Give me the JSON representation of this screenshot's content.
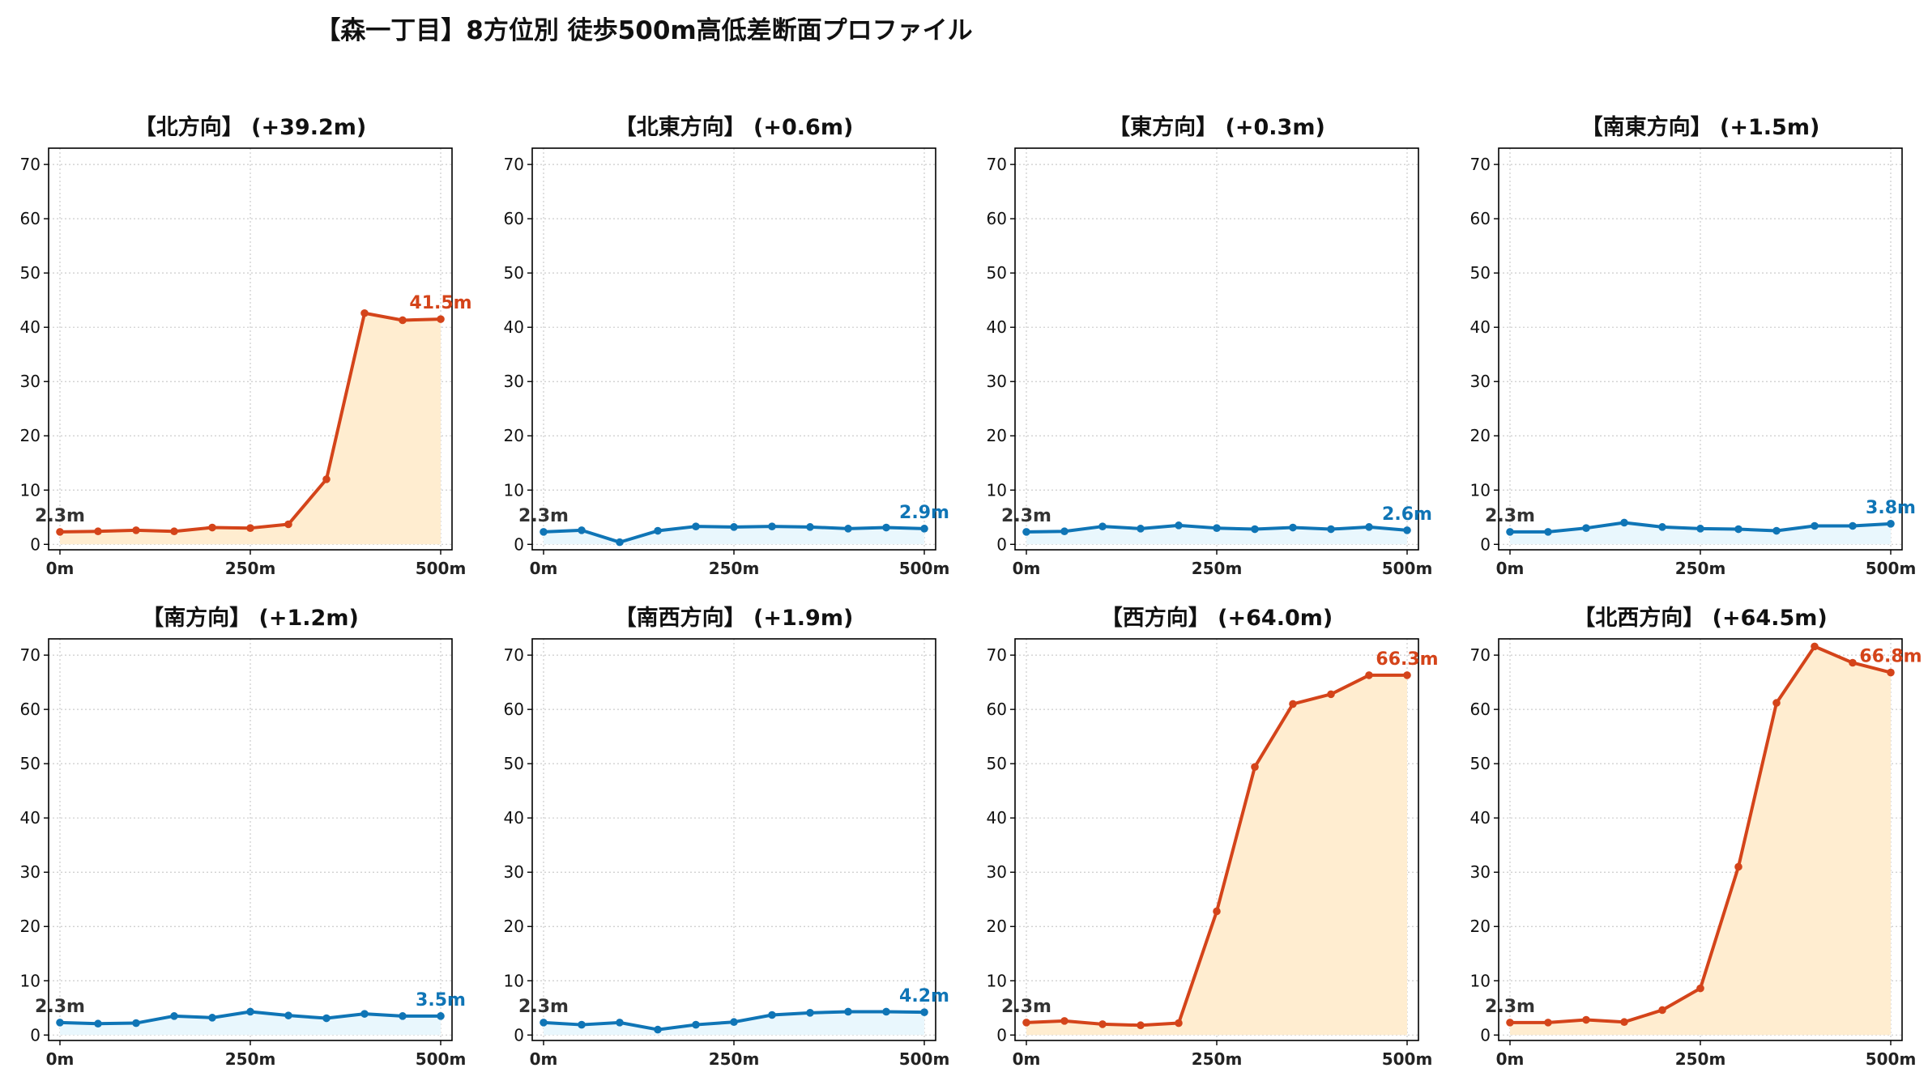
{
  "title": "【森一丁目】8方位別 徒歩500m高低差断面プロファイル",
  "colors": {
    "up_line": "#d4441a",
    "up_fill": "#ffedd0",
    "flat_line": "#0f75b6",
    "flat_fill": "#e9f7fd",
    "start_label": "#333333",
    "grid": "#cccccc",
    "axis": "#000000"
  },
  "chart_data": [
    {
      "type": "line",
      "title": "【北方向】 (+39.2m)",
      "trend": "up",
      "x": [
        0,
        50,
        100,
        150,
        200,
        250,
        300,
        350,
        400,
        450,
        500
      ],
      "values": [
        2.3,
        2.4,
        2.6,
        2.4,
        3.1,
        3.0,
        3.7,
        12.0,
        42.6,
        41.3,
        41.5
      ],
      "start_label": "2.3m",
      "end_label": "41.5m",
      "xticks": [
        "0m",
        "250m",
        "500m"
      ],
      "yticks": [
        "0",
        "10",
        "20",
        "30",
        "40",
        "50",
        "60",
        "70"
      ],
      "xlim": [
        0,
        500
      ],
      "ylim": [
        -1,
        73
      ],
      "grid": true
    },
    {
      "type": "line",
      "title": "【北東方向】 (+0.6m)",
      "trend": "flat",
      "x": [
        0,
        50,
        100,
        150,
        200,
        250,
        300,
        350,
        400,
        450,
        500
      ],
      "values": [
        2.3,
        2.6,
        0.4,
        2.5,
        3.3,
        3.2,
        3.3,
        3.2,
        2.9,
        3.1,
        2.9
      ],
      "start_label": "2.3m",
      "end_label": "2.9m",
      "xticks": [
        "0m",
        "250m",
        "500m"
      ],
      "yticks": [
        "0",
        "10",
        "20",
        "30",
        "40",
        "50",
        "60",
        "70"
      ],
      "xlim": [
        0,
        500
      ],
      "ylim": [
        -1,
        73
      ],
      "grid": true
    },
    {
      "type": "line",
      "title": "【東方向】 (+0.3m)",
      "trend": "flat",
      "x": [
        0,
        50,
        100,
        150,
        200,
        250,
        300,
        350,
        400,
        450,
        500
      ],
      "values": [
        2.3,
        2.4,
        3.3,
        2.9,
        3.5,
        3.0,
        2.8,
        3.1,
        2.8,
        3.2,
        2.6
      ],
      "start_label": "2.3m",
      "end_label": "2.6m",
      "xticks": [
        "0m",
        "250m",
        "500m"
      ],
      "yticks": [
        "0",
        "10",
        "20",
        "30",
        "40",
        "50",
        "60",
        "70"
      ],
      "xlim": [
        0,
        500
      ],
      "ylim": [
        -1,
        73
      ],
      "grid": true
    },
    {
      "type": "line",
      "title": "【南東方向】 (+1.5m)",
      "trend": "flat",
      "x": [
        0,
        50,
        100,
        150,
        200,
        250,
        300,
        350,
        400,
        450,
        500
      ],
      "values": [
        2.3,
        2.3,
        3.0,
        4.0,
        3.2,
        2.9,
        2.8,
        2.5,
        3.4,
        3.4,
        3.8
      ],
      "start_label": "2.3m",
      "end_label": "3.8m",
      "xticks": [
        "0m",
        "250m",
        "500m"
      ],
      "yticks": [
        "0",
        "10",
        "20",
        "30",
        "40",
        "50",
        "60",
        "70"
      ],
      "xlim": [
        0,
        500
      ],
      "ylim": [
        -1,
        73
      ],
      "grid": true
    },
    {
      "type": "line",
      "title": "【南方向】 (+1.2m)",
      "trend": "flat",
      "x": [
        0,
        50,
        100,
        150,
        200,
        250,
        300,
        350,
        400,
        450,
        500
      ],
      "values": [
        2.3,
        2.1,
        2.2,
        3.5,
        3.2,
        4.3,
        3.6,
        3.1,
        3.9,
        3.5,
        3.5
      ],
      "start_label": "2.3m",
      "end_label": "3.5m",
      "xticks": [
        "0m",
        "250m",
        "500m"
      ],
      "yticks": [
        "0",
        "10",
        "20",
        "30",
        "40",
        "50",
        "60",
        "70"
      ],
      "xlim": [
        0,
        500
      ],
      "ylim": [
        -1,
        73
      ],
      "grid": true
    },
    {
      "type": "line",
      "title": "【南西方向】 (+1.9m)",
      "trend": "flat",
      "x": [
        0,
        50,
        100,
        150,
        200,
        250,
        300,
        350,
        400,
        450,
        500
      ],
      "values": [
        2.3,
        1.9,
        2.3,
        1.0,
        1.9,
        2.4,
        3.7,
        4.1,
        4.3,
        4.3,
        4.2
      ],
      "start_label": "2.3m",
      "end_label": "4.2m",
      "xticks": [
        "0m",
        "250m",
        "500m"
      ],
      "yticks": [
        "0",
        "10",
        "20",
        "30",
        "40",
        "50",
        "60",
        "70"
      ],
      "xlim": [
        0,
        500
      ],
      "ylim": [
        -1,
        73
      ],
      "grid": true
    },
    {
      "type": "line",
      "title": "【西方向】 (+64.0m)",
      "trend": "up",
      "x": [
        0,
        50,
        100,
        150,
        200,
        250,
        300,
        350,
        400,
        450,
        500
      ],
      "values": [
        2.3,
        2.6,
        2.0,
        1.8,
        2.2,
        22.8,
        49.4,
        61.0,
        62.8,
        66.3,
        66.3
      ],
      "start_label": "2.3m",
      "end_label": "66.3m",
      "xticks": [
        "0m",
        "250m",
        "500m"
      ],
      "yticks": [
        "0",
        "10",
        "20",
        "30",
        "40",
        "50",
        "60",
        "70"
      ],
      "xlim": [
        0,
        500
      ],
      "ylim": [
        -1,
        73
      ],
      "grid": true
    },
    {
      "type": "line",
      "title": "【北西方向】 (+64.5m)",
      "trend": "up",
      "x": [
        0,
        50,
        100,
        150,
        200,
        250,
        300,
        350,
        400,
        450,
        500
      ],
      "values": [
        2.3,
        2.3,
        2.8,
        2.4,
        4.6,
        8.6,
        31.0,
        61.2,
        71.6,
        68.6,
        66.8
      ],
      "start_label": "2.3m",
      "end_label": "66.8m",
      "xticks": [
        "0m",
        "250m",
        "500m"
      ],
      "yticks": [
        "0",
        "10",
        "20",
        "30",
        "40",
        "50",
        "60",
        "70"
      ],
      "xlim": [
        0,
        500
      ],
      "ylim": [
        -1,
        73
      ],
      "grid": true
    }
  ]
}
